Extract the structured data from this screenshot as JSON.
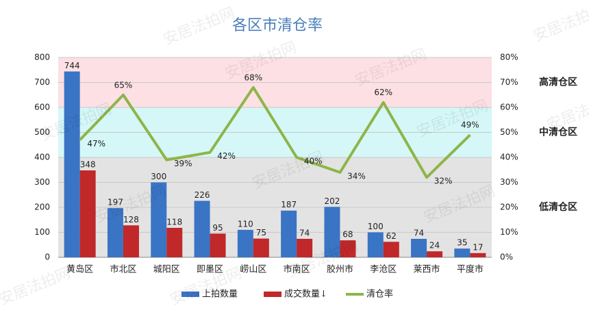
{
  "chart_data": {
    "type": "bar",
    "title": "各区市清仓率",
    "watermark": "安居法拍网",
    "categories": [
      "黄岛区",
      "市北区",
      "城阳区",
      "即墨区",
      "崂山区",
      "市南区",
      "胶州市",
      "李沧区",
      "莱西市",
      "平度市"
    ],
    "series": [
      {
        "name": "上拍数量",
        "color": "#3a74c4",
        "values": [
          744,
          197,
          300,
          226,
          110,
          187,
          202,
          100,
          74,
          35
        ]
      },
      {
        "name": "成交数量↓",
        "color": "#c0282a",
        "values": [
          348,
          128,
          118,
          95,
          75,
          74,
          68,
          62,
          24,
          17
        ]
      },
      {
        "name": "清仓率",
        "color": "#8db548",
        "type": "line",
        "axis": "y2",
        "values": [
          47,
          65,
          39,
          42,
          68,
          40,
          34,
          62,
          32,
          49
        ],
        "value_labels": [
          "47%",
          "65%",
          "39%",
          "42%",
          "68%",
          "40%",
          "34%",
          "62%",
          "32%",
          "49%"
        ]
      }
    ],
    "ylim": [
      0,
      800
    ],
    "yticks": [
      0,
      100,
      200,
      300,
      400,
      500,
      600,
      700,
      800
    ],
    "y2lim": [
      0,
      80
    ],
    "y2ticks": [
      {
        "value": 0,
        "label": "0%"
      },
      {
        "value": 10,
        "label": "10%"
      },
      {
        "value": 20,
        "label": "20%"
      },
      {
        "value": 30,
        "label": "30%"
      },
      {
        "value": 40,
        "label": "40%"
      },
      {
        "value": 50,
        "label": "50%"
      },
      {
        "value": 60,
        "label": "60%"
      },
      {
        "value": 70,
        "label": "70%"
      },
      {
        "value": 80,
        "label": "80%"
      }
    ],
    "bands": [
      {
        "from": 600,
        "to": 800,
        "color": "#fde0e4",
        "label": "高清仓区"
      },
      {
        "from": 400,
        "to": 600,
        "color": "#d5f7f7",
        "label": "中清仓区"
      },
      {
        "from": 0,
        "to": 400,
        "color": "#e3e3e3",
        "label": "低清仓区"
      }
    ],
    "grid": true,
    "legend": "bottom"
  }
}
